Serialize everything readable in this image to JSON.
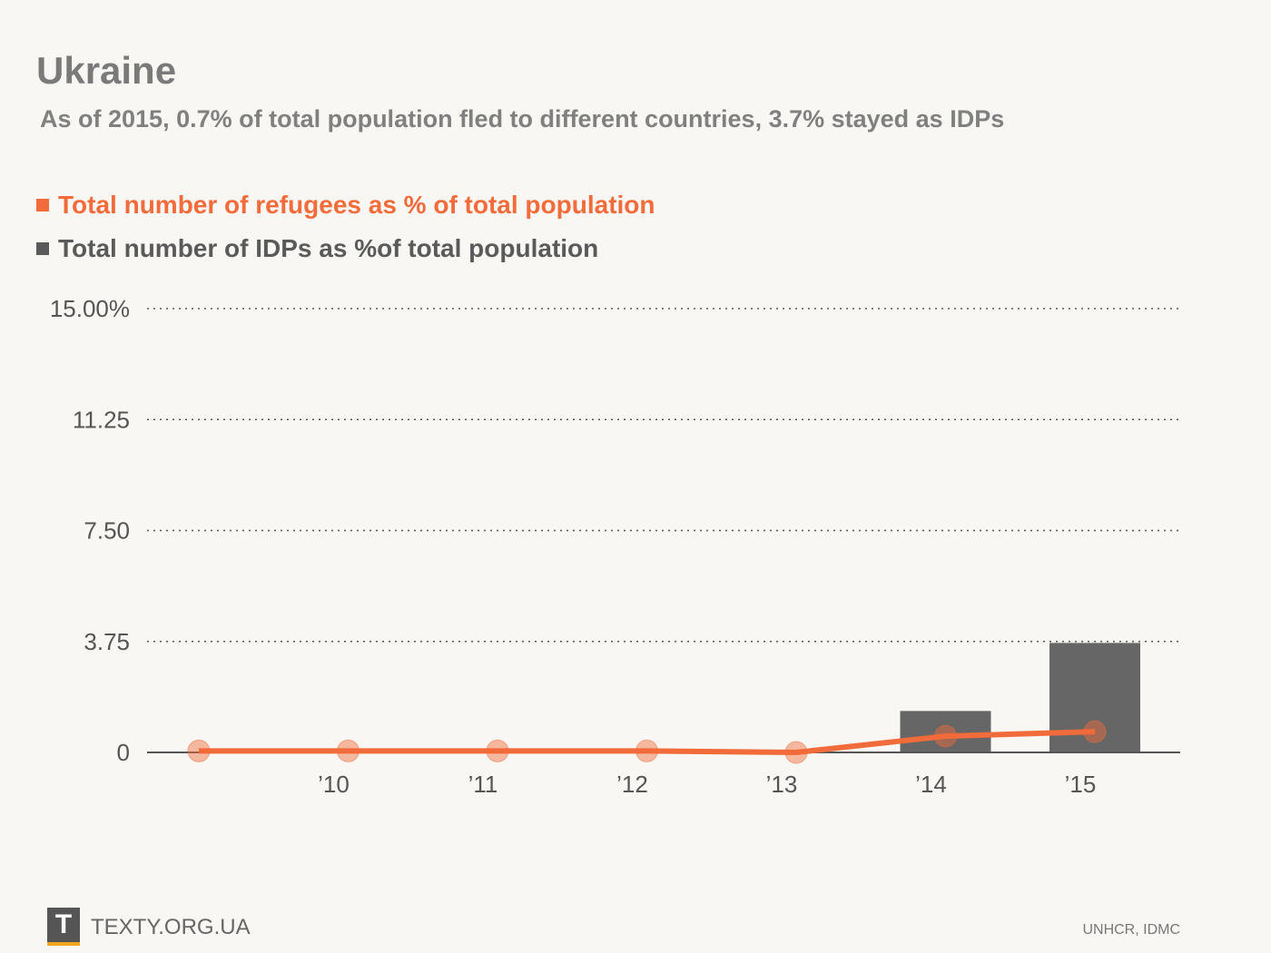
{
  "header": {
    "title": "Ukraine",
    "subtitle": "As of 2015, 0.7% of total population fled to different countries, 3.7% stayed as IDPs"
  },
  "legend": {
    "refugees_label": "Total number of refugees as % of total population",
    "idps_label": "Total number of IDPs as %of total population"
  },
  "colors": {
    "refugees": "#f26b3a",
    "idps": "#666666",
    "grid": "#555555"
  },
  "footer": {
    "logo": "T",
    "site": "TEXTY.ORG.UA",
    "source": "UNHCR, IDMC"
  },
  "chart_data": {
    "type": "bar+line",
    "title": "Ukraine",
    "categories": [
      "",
      "’10",
      "’11",
      "’12",
      "’13",
      "’14",
      "’15"
    ],
    "y_ticks": [
      "0",
      "3.75",
      "7.50",
      "11.25",
      "15.00%"
    ],
    "y_tick_values": [
      0,
      3.75,
      7.5,
      11.25,
      15
    ],
    "ylim": [
      0,
      15
    ],
    "series": [
      {
        "name": "Total number of IDPs as %of total population",
        "type": "bar",
        "values": [
          0,
          0,
          0,
          0,
          0,
          1.4,
          3.7
        ]
      },
      {
        "name": "Total number of refugees as % of total population",
        "type": "line",
        "values": [
          0.05,
          0.05,
          0.05,
          0.05,
          0.0,
          0.55,
          0.7
        ]
      }
    ],
    "grid": true,
    "legend_position": "top-left"
  }
}
